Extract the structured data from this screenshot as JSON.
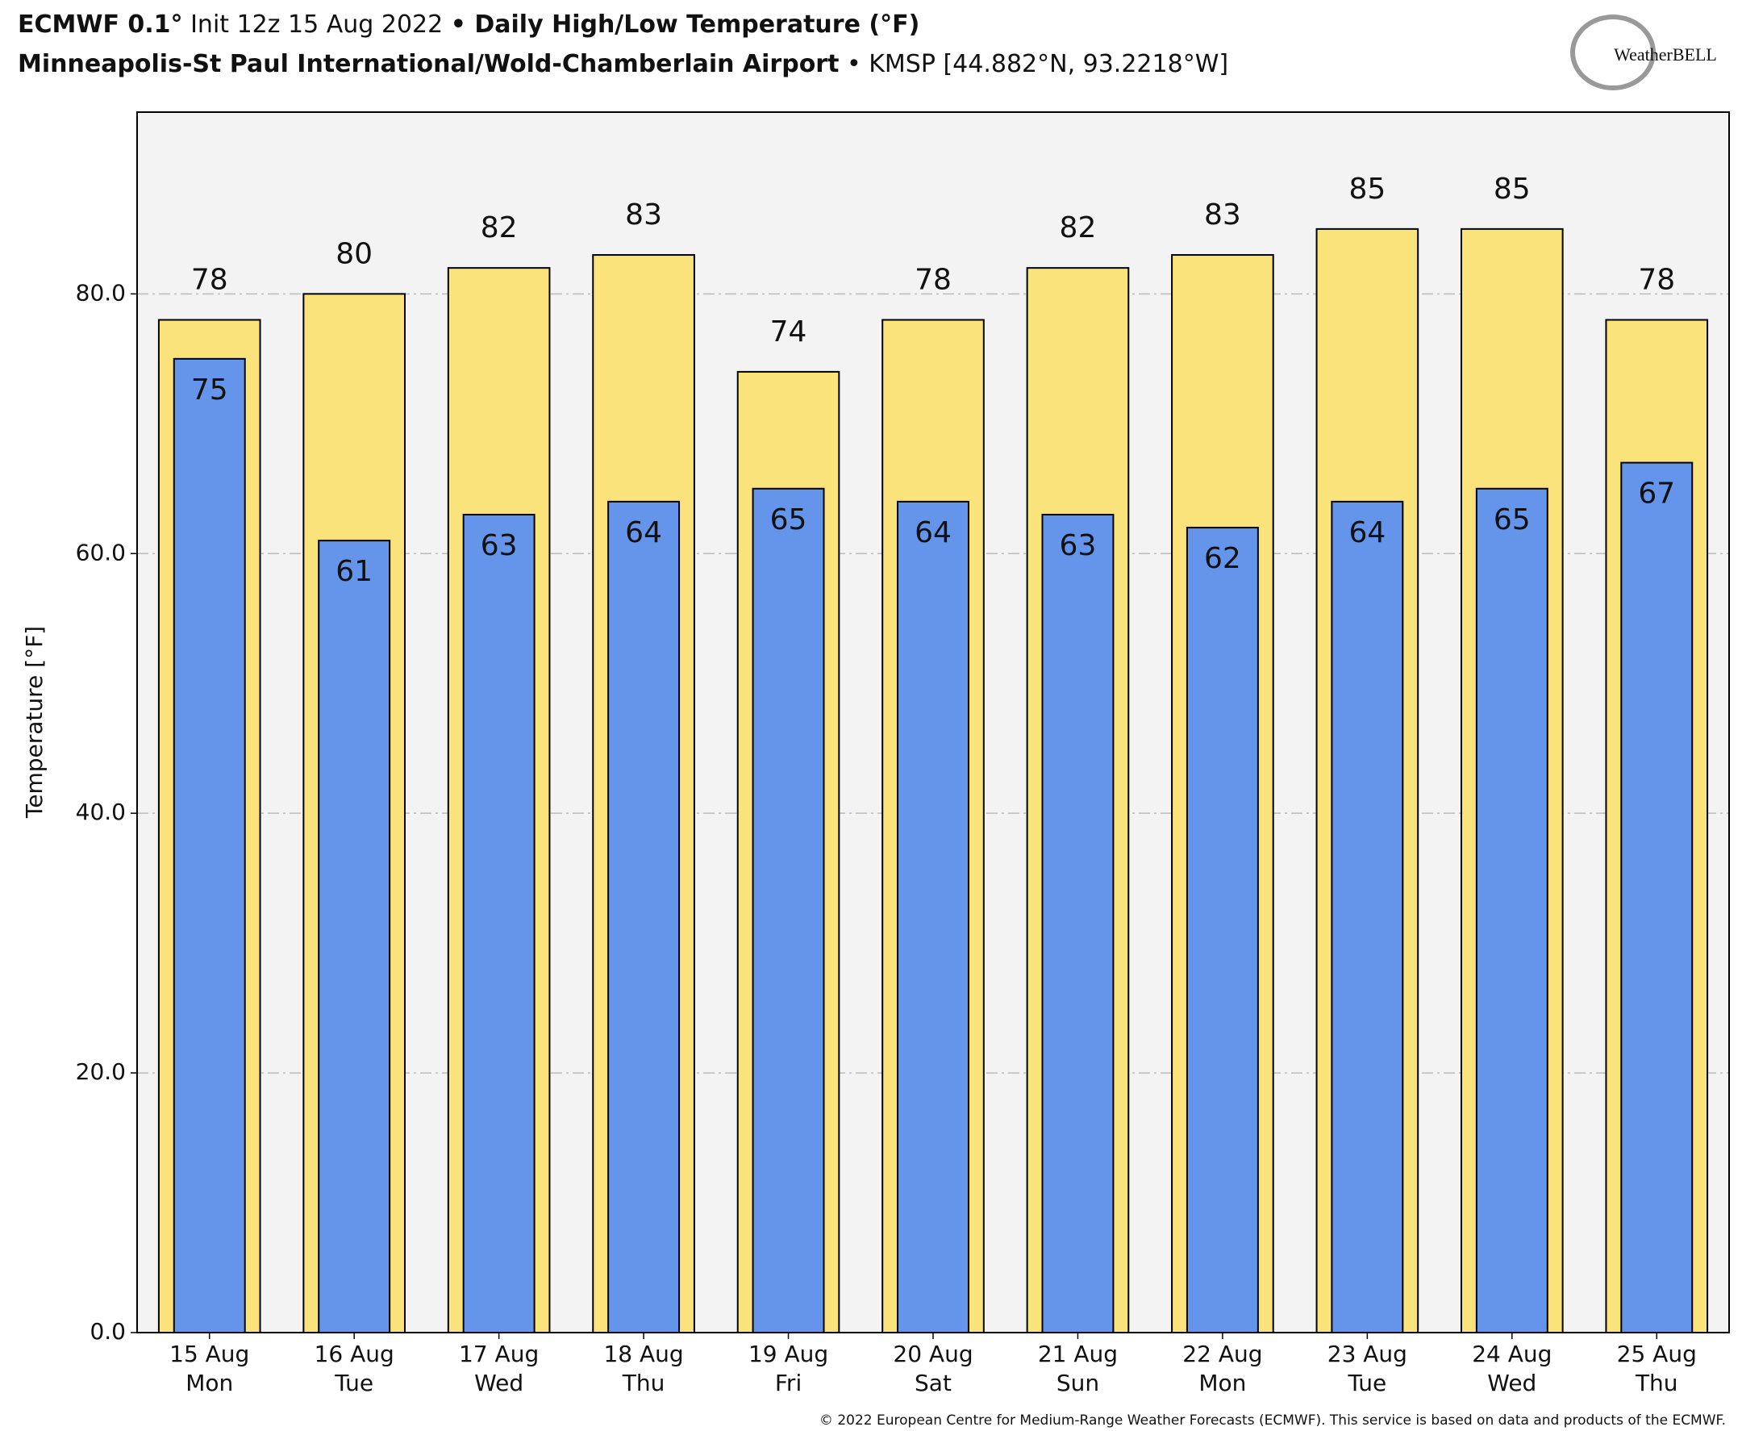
{
  "chart_data": {
    "type": "bar",
    "title_parts": [
      "ECMWF 0.1°",
      " Init 12z 15 Aug 2022 ",
      "• Daily High/Low Temperature (°F)"
    ],
    "subtitle_parts": [
      "Minneapolis-St Paul International/Wold-Chamberlain Airport",
      " • KMSP [44.882°N, 93.2218°W]"
    ],
    "logo": "WeatherBELL",
    "ylabel": "Temperature [°F]",
    "footer": "© 2022 European Centre for Medium-Range Weather Forecasts (ECMWF). This service is based on data and products of the ECMWF.",
    "categories": [
      [
        "15 Aug",
        "Mon"
      ],
      [
        "16 Aug",
        "Tue"
      ],
      [
        "17 Aug",
        "Wed"
      ],
      [
        "18 Aug",
        "Thu"
      ],
      [
        "19 Aug",
        "Fri"
      ],
      [
        "20 Aug",
        "Sat"
      ],
      [
        "21 Aug",
        "Sun"
      ],
      [
        "22 Aug",
        "Mon"
      ],
      [
        "23 Aug",
        "Tue"
      ],
      [
        "24 Aug",
        "Wed"
      ],
      [
        "25 Aug",
        "Thu"
      ]
    ],
    "series": [
      {
        "color": "#fbe37c",
        "values": [
          78,
          80,
          82,
          83,
          74,
          78,
          82,
          83,
          85,
          85,
          78
        ]
      },
      {
        "color": "#6495ea",
        "values": [
          75,
          61,
          63,
          64,
          65,
          64,
          63,
          62,
          64,
          65,
          67
        ]
      }
    ],
    "ylim": [
      0,
      94
    ],
    "yticks": [
      {
        "value": 0,
        "label": "0.0"
      },
      {
        "value": 20,
        "label": "20.0"
      },
      {
        "value": 40,
        "label": "40.0"
      },
      {
        "value": 60,
        "label": "60.0"
      },
      {
        "value": 80,
        "label": "80.0"
      }
    ],
    "grid": true
  }
}
